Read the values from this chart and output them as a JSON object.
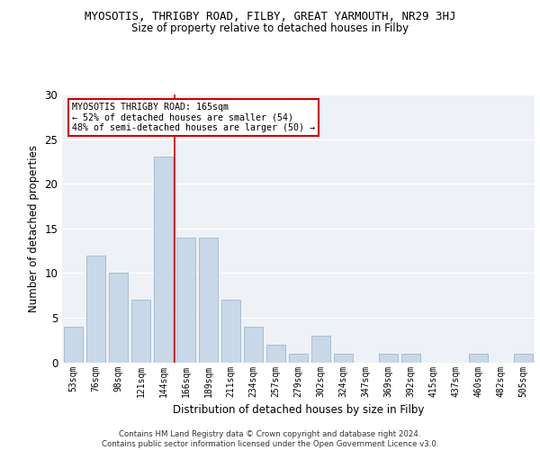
{
  "title_line1": "MYOSOTIS, THRIGBY ROAD, FILBY, GREAT YARMOUTH, NR29 3HJ",
  "title_line2": "Size of property relative to detached houses in Filby",
  "xlabel": "Distribution of detached houses by size in Filby",
  "ylabel": "Number of detached properties",
  "categories": [
    "53sqm",
    "76sqm",
    "98sqm",
    "121sqm",
    "144sqm",
    "166sqm",
    "189sqm",
    "211sqm",
    "234sqm",
    "257sqm",
    "279sqm",
    "302sqm",
    "324sqm",
    "347sqm",
    "369sqm",
    "392sqm",
    "415sqm",
    "437sqm",
    "460sqm",
    "482sqm",
    "505sqm"
  ],
  "values": [
    4,
    12,
    10,
    7,
    23,
    14,
    14,
    7,
    4,
    2,
    1,
    3,
    1,
    0,
    1,
    1,
    0,
    0,
    1,
    0,
    1
  ],
  "bar_color": "#c8d8e8",
  "bar_edge_color": "#a0b8cc",
  "marker_index": 5,
  "marker_color": "#cc0000",
  "ylim": [
    0,
    30
  ],
  "yticks": [
    0,
    5,
    10,
    15,
    20,
    25,
    30
  ],
  "annotation_text": "MYOSOTIS THRIGBY ROAD: 165sqm\n← 52% of detached houses are smaller (54)\n48% of semi-detached houses are larger (50) →",
  "annotation_box_color": "#ffffff",
  "annotation_box_edge_color": "#cc0000",
  "footer_text": "Contains HM Land Registry data © Crown copyright and database right 2024.\nContains public sector information licensed under the Open Government Licence v3.0.",
  "background_color": "#eef2f7",
  "grid_color": "#ffffff"
}
